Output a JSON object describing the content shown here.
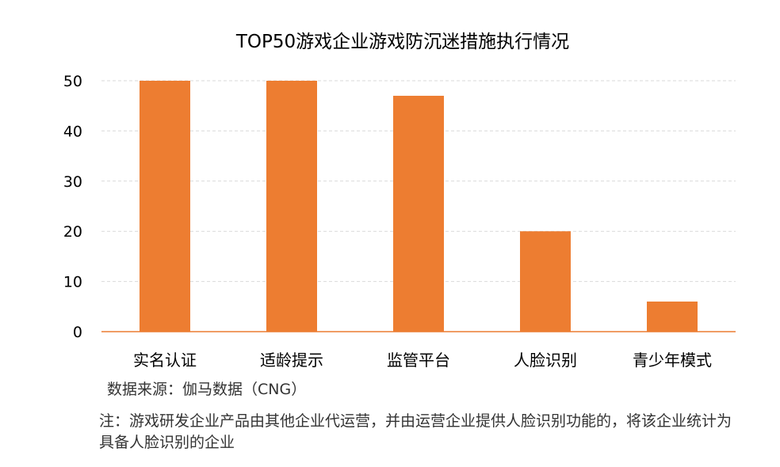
{
  "chart_data": {
    "type": "bar",
    "title": "TOP50游戏企业游戏防沉迷措施执行情况",
    "categories": [
      "实名认证",
      "适龄提示",
      "监管平台",
      "人脸识别",
      "青少年模式"
    ],
    "values": [
      50,
      50,
      47,
      20,
      6
    ],
    "ylim": [
      0,
      50
    ],
    "yticks": [
      0,
      10,
      20,
      30,
      40,
      50
    ],
    "grid": true,
    "bar_color": "#ED7D31",
    "axis_color": "#EC7C30"
  },
  "source": "数据来源：伽马数据（CNG）",
  "note": "注：游戏研发企业产品由其他企业代运营，并由运营企业提供人脸识别功能的，将该企业统计为具备人脸识别的企业"
}
